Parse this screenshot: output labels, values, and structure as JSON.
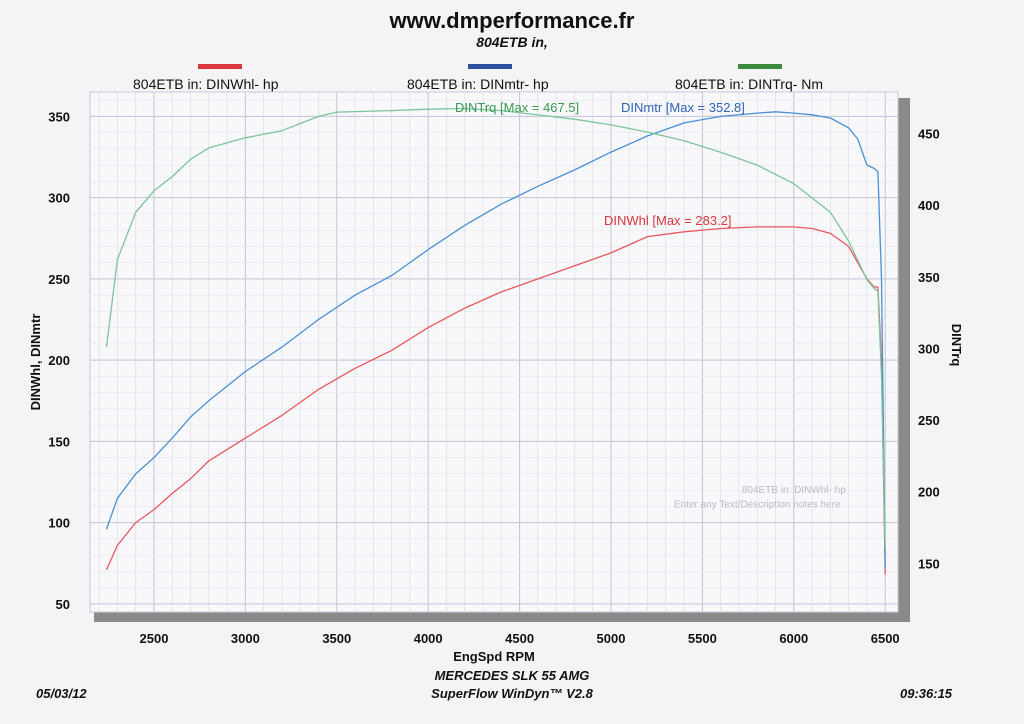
{
  "header": {
    "title": "www.dmperformance.fr",
    "subtitle": "804ETB in,"
  },
  "legend": [
    {
      "label": "804ETB in: DINWhl-  hp",
      "color": "#d9363e"
    },
    {
      "label": "804ETB in: DINmtr-  hp",
      "color": "#2c4f9e"
    },
    {
      "label": "804ETB in: DINTrq-  Nm",
      "color": "#3a8a3e"
    }
  ],
  "footer": {
    "vehicle": "MERCEDES SLK 55 AMG",
    "software": "SuperFlow WinDyn™ V2.8",
    "date": "05/03/12",
    "time": "09:36:15"
  },
  "chart_data": {
    "type": "line",
    "xlabel": "EngSpd  RPM",
    "ylabel": "DINWhl, DINmtr",
    "y2label": "DINTrq",
    "xlim": [
      2150,
      6570
    ],
    "ylim": [
      45,
      365
    ],
    "y2lim": [
      116,
      479
    ],
    "x_ticks": [
      2500,
      3000,
      3500,
      4000,
      4500,
      5000,
      5500,
      6000,
      6500
    ],
    "y_ticks": [
      50,
      100,
      150,
      200,
      250,
      300,
      350
    ],
    "y2_ticks": [
      150,
      200,
      250,
      300,
      350,
      400,
      450
    ],
    "grid": true,
    "series": [
      {
        "name": "DINWhl",
        "axis": "left",
        "color": "#e8585f",
        "annotation": "DINWhl [Max = 283.2]",
        "x": [
          2240,
          2300,
          2400,
          2500,
          2600,
          2700,
          2800,
          3000,
          3200,
          3400,
          3600,
          3800,
          4000,
          4200,
          4400,
          4600,
          4800,
          5000,
          5200,
          5400,
          5600,
          5800,
          6000,
          6100,
          6200,
          6300,
          6400,
          6440,
          6460,
          6480,
          6500
        ],
        "y": [
          71,
          86,
          100,
          108,
          118,
          127,
          138,
          152,
          166,
          182,
          195,
          206,
          220,
          232,
          242,
          250,
          258,
          266,
          276,
          279,
          281,
          282,
          282,
          281,
          278,
          270,
          250,
          245,
          245,
          200,
          68
        ]
      },
      {
        "name": "DINmtr",
        "axis": "left",
        "color": "#4a90d6",
        "annotation": "DINmtr [Max = 352.8]",
        "x": [
          2240,
          2300,
          2400,
          2500,
          2600,
          2700,
          2800,
          3000,
          3200,
          3400,
          3600,
          3800,
          4000,
          4200,
          4400,
          4600,
          4800,
          5000,
          5200,
          5400,
          5600,
          5800,
          5900,
          6000,
          6100,
          6200,
          6300,
          6350,
          6400,
          6440,
          6460,
          6480,
          6500
        ],
        "y": [
          96,
          115,
          130,
          140,
          152,
          165,
          175,
          193,
          208,
          225,
          240,
          252,
          268,
          283,
          296,
          307,
          317,
          328,
          338,
          346,
          350,
          352,
          352.8,
          352,
          351,
          349,
          343,
          336,
          320,
          318,
          316,
          250,
          72
        ]
      },
      {
        "name": "DINTrq",
        "axis": "right",
        "color": "#7cc49a",
        "annotation": "DINTrq [Max = 467.5]",
        "x": [
          2240,
          2300,
          2400,
          2500,
          2600,
          2700,
          2800,
          3000,
          3200,
          3400,
          3500,
          3800,
          4000,
          4200,
          4400,
          4600,
          4800,
          5000,
          5200,
          5400,
          5600,
          5800,
          6000,
          6200,
          6300,
          6400,
          6440,
          6460,
          6480,
          6500
        ],
        "y": [
          301,
          362,
          395,
          410,
          420,
          432,
          440,
          447,
          452,
          462,
          465,
          466,
          467,
          467.5,
          466,
          463,
          460,
          456,
          451,
          445,
          437,
          428,
          415,
          395,
          375,
          348,
          342,
          340,
          280,
          160
        ]
      }
    ],
    "watermark": [
      "804ETB in: DINWhl-  hp",
      "Enter any Text/Description notes here"
    ]
  }
}
